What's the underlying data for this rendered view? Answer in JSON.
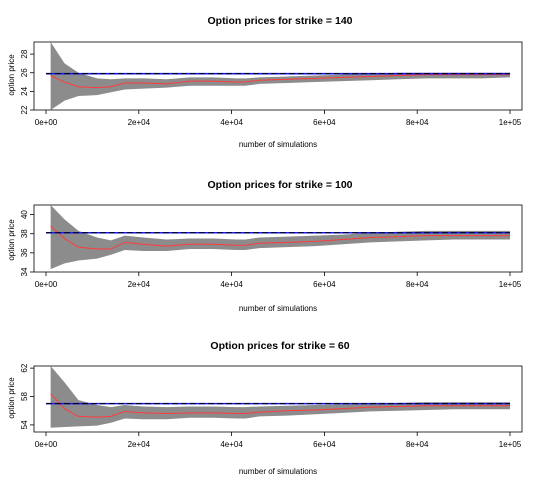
{
  "chart_data": [
    {
      "type": "line",
      "title": "Option prices for strike = 140",
      "xlabel": "number of simulations",
      "ylabel": "option price",
      "xlim": [
        0,
        100000
      ],
      "ylim": [
        22,
        29.3
      ],
      "xticks": [
        0,
        20000,
        40000,
        60000,
        80000,
        100000
      ],
      "xtick_labels": [
        "0e+00",
        "2e+04",
        "4e+04",
        "6e+04",
        "8e+04",
        "1e+05"
      ],
      "yticks": [
        22,
        24,
        26,
        28
      ],
      "ytick_labels": [
        "22",
        "24",
        "26",
        "28"
      ],
      "reference_value": 25.9,
      "x": [
        1000,
        4000,
        7000,
        11000,
        14000,
        17000,
        21000,
        26000,
        31000,
        36000,
        41000,
        43000,
        46000,
        52000,
        58000,
        64000,
        70000,
        76000,
        82000,
        88000,
        94000,
        100000
      ],
      "estimate": [
        25.7,
        25.0,
        24.5,
        24.4,
        24.5,
        24.9,
        24.9,
        24.8,
        25.1,
        25.1,
        25.0,
        25.0,
        25.2,
        25.3,
        25.4,
        25.5,
        25.6,
        25.7,
        25.8,
        25.8,
        25.8,
        25.8
      ],
      "band_lower": [
        22.0,
        23.0,
        23.5,
        23.6,
        23.9,
        24.2,
        24.3,
        24.4,
        24.6,
        24.6,
        24.6,
        24.6,
        24.8,
        24.9,
        25.0,
        25.1,
        25.2,
        25.3,
        25.4,
        25.4,
        25.4,
        25.5
      ],
      "band_upper": [
        29.3,
        27.0,
        26.0,
        25.4,
        25.3,
        25.4,
        25.4,
        25.3,
        25.5,
        25.5,
        25.4,
        25.4,
        25.5,
        25.6,
        25.7,
        25.8,
        25.9,
        26.0,
        26.0,
        26.0,
        26.0,
        26.0
      ],
      "colors": {
        "estimate": "#ff3b3b",
        "band": "#8c8c8c",
        "reference": "#000000",
        "reference_overlay": "#1a1aff"
      }
    },
    {
      "type": "line",
      "title": "Option prices for strike = 100",
      "xlabel": "number of simulations",
      "ylabel": "option price",
      "xlim": [
        0,
        100000
      ],
      "ylim": [
        34,
        41
      ],
      "xticks": [
        0,
        20000,
        40000,
        60000,
        80000,
        100000
      ],
      "xtick_labels": [
        "0e+00",
        "2e+04",
        "4e+04",
        "6e+04",
        "8e+04",
        "1e+05"
      ],
      "yticks": [
        34,
        36,
        38,
        40
      ],
      "ytick_labels": [
        "34",
        "36",
        "38",
        "40"
      ],
      "reference_value": 38.1,
      "x": [
        1000,
        4000,
        7000,
        11000,
        14000,
        17000,
        21000,
        26000,
        31000,
        36000,
        41000,
        43000,
        46000,
        52000,
        58000,
        64000,
        70000,
        76000,
        82000,
        88000,
        94000,
        100000
      ],
      "estimate": [
        38.8,
        37.5,
        36.6,
        36.4,
        36.4,
        37.1,
        36.9,
        36.7,
        36.9,
        36.9,
        36.8,
        36.8,
        37.0,
        37.1,
        37.2,
        37.4,
        37.6,
        37.7,
        37.8,
        37.8,
        37.8,
        37.8
      ],
      "band_lower": [
        34.3,
        34.9,
        35.2,
        35.4,
        35.8,
        36.3,
        36.2,
        36.2,
        36.4,
        36.4,
        36.3,
        36.3,
        36.5,
        36.6,
        36.7,
        36.9,
        37.1,
        37.2,
        37.3,
        37.4,
        37.4,
        37.4
      ],
      "band_upper": [
        41.0,
        39.5,
        38.3,
        37.6,
        37.3,
        37.8,
        37.6,
        37.4,
        37.5,
        37.5,
        37.4,
        37.4,
        37.6,
        37.7,
        37.8,
        37.9,
        38.1,
        38.2,
        38.3,
        38.3,
        38.3,
        38.3
      ],
      "colors": {
        "estimate": "#ff3b3b",
        "band": "#8c8c8c",
        "reference": "#000000",
        "reference_overlay": "#1a1aff"
      }
    },
    {
      "type": "line",
      "title": "Option prices for strike = 60",
      "xlabel": "number of simulations",
      "ylabel": "option price",
      "xlim": [
        0,
        100000
      ],
      "ylim": [
        53,
        62.3
      ],
      "xticks": [
        0,
        20000,
        40000,
        60000,
        80000,
        100000
      ],
      "xtick_labels": [
        "0e+00",
        "2e+04",
        "4e+04",
        "6e+04",
        "8e+04",
        "1e+05"
      ],
      "yticks": [
        54,
        58,
        62
      ],
      "ytick_labels": [
        "54",
        "58",
        "62"
      ],
      "reference_value": 57.0,
      "x": [
        1000,
        4000,
        7000,
        11000,
        14000,
        17000,
        21000,
        26000,
        31000,
        36000,
        41000,
        43000,
        46000,
        52000,
        58000,
        64000,
        70000,
        76000,
        82000,
        88000,
        94000,
        100000
      ],
      "estimate": [
        58.4,
        56.3,
        55.2,
        55.1,
        55.2,
        55.9,
        55.7,
        55.6,
        55.7,
        55.7,
        55.6,
        55.6,
        55.8,
        56.0,
        56.1,
        56.3,
        56.5,
        56.6,
        56.7,
        56.7,
        56.7,
        56.7
      ],
      "band_lower": [
        53.6,
        53.7,
        53.8,
        53.9,
        54.3,
        54.9,
        54.8,
        54.8,
        55.0,
        55.0,
        54.9,
        54.9,
        55.2,
        55.3,
        55.5,
        55.7,
        55.9,
        56.0,
        56.1,
        56.2,
        56.2,
        56.2
      ],
      "band_upper": [
        62.3,
        60.0,
        57.5,
        56.8,
        56.5,
        56.8,
        56.6,
        56.5,
        56.6,
        56.6,
        56.5,
        56.5,
        56.6,
        56.7,
        56.8,
        56.9,
        57.0,
        57.1,
        57.2,
        57.2,
        57.2,
        57.2
      ],
      "colors": {
        "estimate": "#ff3b3b",
        "band": "#8c8c8c",
        "reference": "#000000",
        "reference_overlay": "#1a1aff"
      }
    }
  ]
}
